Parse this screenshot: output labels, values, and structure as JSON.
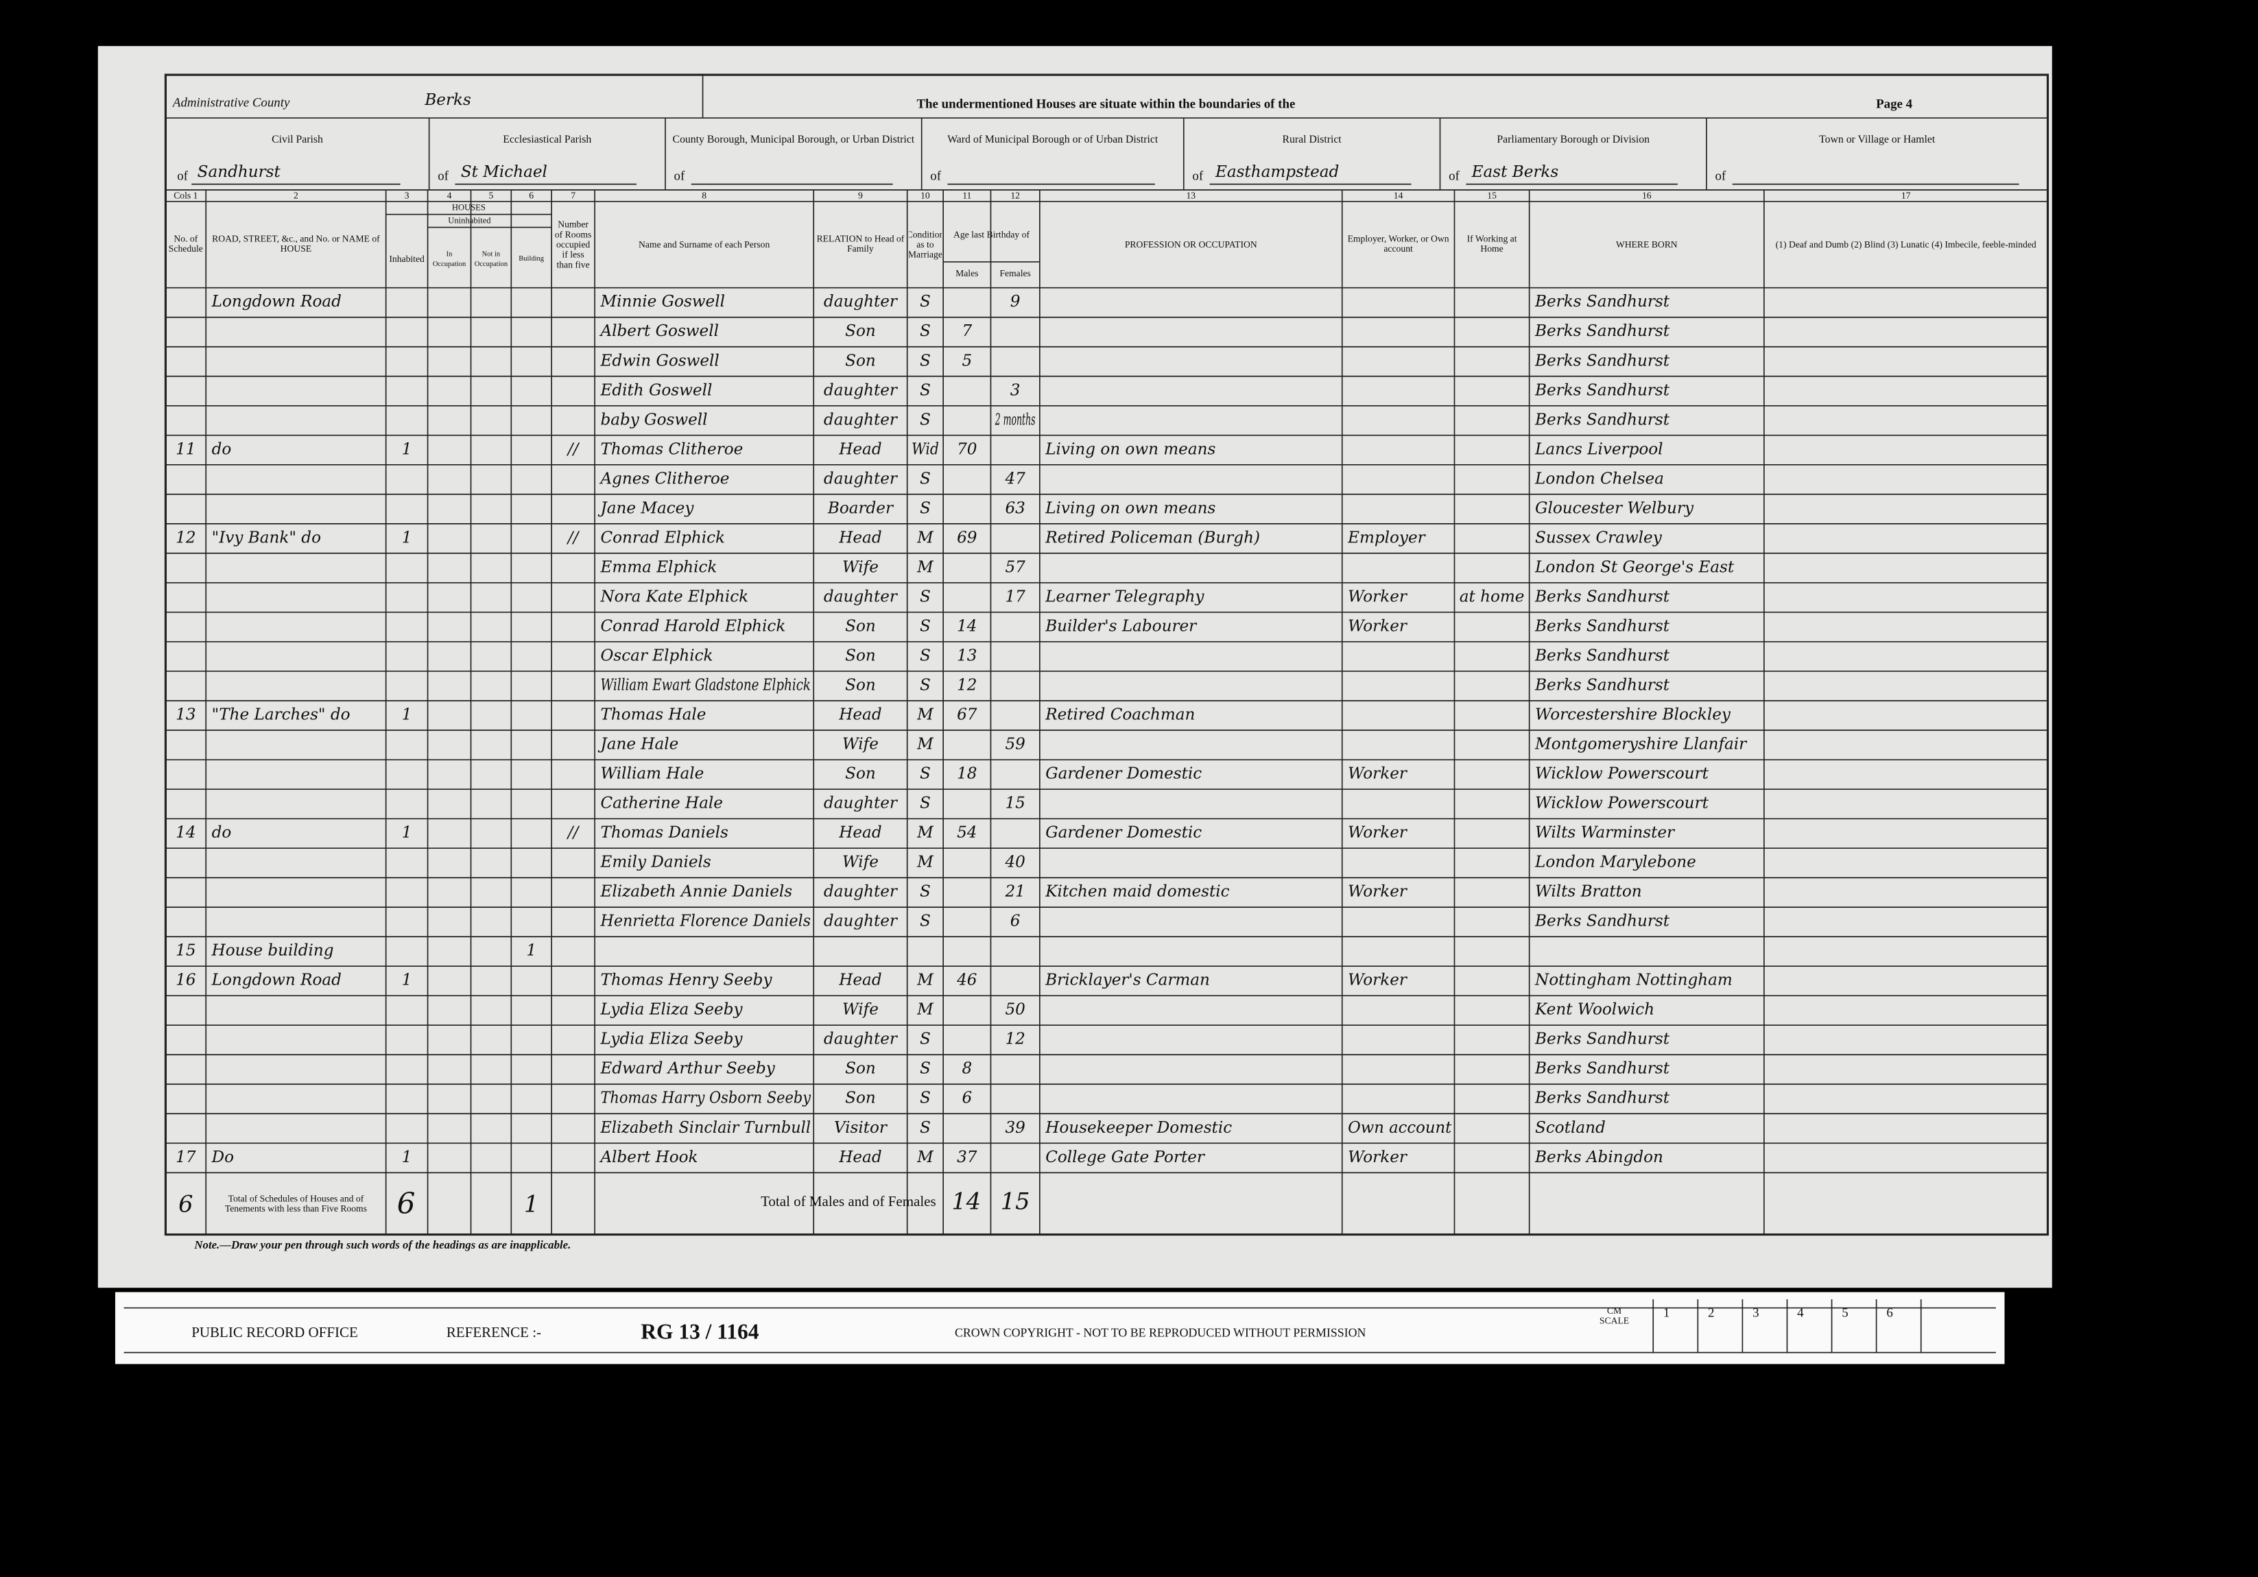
{
  "header": {
    "county_label": "Administrative County",
    "county": "Berks",
    "title": "The undermentioned Houses are situate within the boundaries of the",
    "page": "Page 4"
  },
  "districts": [
    {
      "label": "Civil Parish",
      "prefix": "of",
      "value": "Sandhurst"
    },
    {
      "label": "Ecclesiastical Parish",
      "prefix": "of",
      "value": "St Michael"
    },
    {
      "label": "County Borough, Municipal Borough, or Urban District",
      "prefix": "of"
    },
    {
      "label": "Ward of Municipal Borough or of Urban District",
      "prefix": "of"
    },
    {
      "label": "Rural District",
      "prefix": "of",
      "value": "Easthampstead"
    },
    {
      "label": "Parliamentary Borough or Division",
      "prefix": "of",
      "value": "East Berks"
    },
    {
      "label": "Town or Village or Hamlet",
      "prefix": "of"
    }
  ],
  "table": {
    "houses_group": "HOUSES",
    "uninhabited_group": "Uninhabited",
    "age_group": "Age last Birthday of",
    "columns": [
      {
        "number": "Cols 1",
        "heading": "No. of Schedule"
      },
      {
        "number": "2",
        "heading": "ROAD, STREET, &c., and No. or NAME of HOUSE"
      },
      {
        "number": "3",
        "heading": "Inhabited"
      },
      {
        "number": "4",
        "heading": "In Occupation"
      },
      {
        "number": "5",
        "heading": "Not in Occupation"
      },
      {
        "number": "6",
        "heading": "Building"
      },
      {
        "number": "7",
        "heading": "Number of Rooms occupied if less than five"
      },
      {
        "number": "8",
        "heading": "Name and Surname of each Person"
      },
      {
        "number": "9",
        "heading": "RELATION to Head of Family"
      },
      {
        "number": "10",
        "heading": "Condition as to Marriage"
      },
      {
        "number": "11",
        "heading": "Males"
      },
      {
        "number": "12",
        "heading": "Females"
      },
      {
        "number": "13",
        "heading": "PROFESSION OR OCCUPATION"
      },
      {
        "number": "14",
        "heading": "Employer, Worker, or Own account"
      },
      {
        "number": "15",
        "heading": "If Working at Home"
      },
      {
        "number": "16",
        "heading": "WHERE BORN"
      },
      {
        "number": "17",
        "heading": "(1) Deaf and Dumb (2) Blind (3) Lunatic (4) Imbecile, feeble-minded"
      }
    ],
    "rows": [
      {
        "road": "Longdown Road",
        "name": "Minnie Goswell",
        "relation": "daughter",
        "condition": "S",
        "females": "9",
        "born": "Berks Sandhurst"
      },
      {
        "name": "Albert Goswell",
        "relation": "Son",
        "condition": "S",
        "males": "7",
        "born": "Berks Sandhurst"
      },
      {
        "name": "Edwin Goswell",
        "relation": "Son",
        "condition": "S",
        "males": "5",
        "born": "Berks Sandhurst"
      },
      {
        "name": "Edith Goswell",
        "relation": "daughter",
        "condition": "S",
        "females": "3",
        "born": "Berks Sandhurst"
      },
      {
        "name": "baby Goswell",
        "relation": "daughter",
        "condition": "S",
        "females": "2 months",
        "born": "Berks Sandhurst"
      },
      {
        "schedule": "11",
        "road": "do",
        "inhabited": "1",
        "rooms": "//",
        "name": "Thomas Clitheroe",
        "relation": "Head",
        "condition": "Wid",
        "males": "70",
        "occupation": "Living on own means",
        "born": "Lancs Liverpool"
      },
      {
        "name": "Agnes Clitheroe",
        "relation": "daughter",
        "condition": "S",
        "females": "47",
        "born": "London Chelsea"
      },
      {
        "name": "Jane Macey",
        "relation": "Boarder",
        "condition": "S",
        "females": "63",
        "occupation": "Living on own means",
        "born": "Gloucester Welbury"
      },
      {
        "schedule": "12",
        "road": "\"Ivy Bank\" do",
        "inhabited": "1",
        "rooms": "//",
        "name": "Conrad Elphick",
        "relation": "Head",
        "condition": "M",
        "males": "69",
        "occupation": "Retired Policeman (Burgh)",
        "employment": "Employer",
        "born": "Sussex Crawley"
      },
      {
        "name": "Emma Elphick",
        "relation": "Wife",
        "condition": "M",
        "females": "57",
        "born": "London St George's East"
      },
      {
        "name": "Nora Kate Elphick",
        "relation": "daughter",
        "condition": "S",
        "females": "17",
        "occupation": "Learner Telegraphy",
        "employment": "Worker",
        "at_home": "at home",
        "born": "Berks Sandhurst"
      },
      {
        "name": "Conrad Harold Elphick",
        "relation": "Son",
        "condition": "S",
        "males": "14",
        "occupation": "Builder's Labourer",
        "employment": "Worker",
        "born": "Berks Sandhurst"
      },
      {
        "name": "Oscar Elphick",
        "relation": "Son",
        "condition": "S",
        "males": "13",
        "born": "Berks Sandhurst"
      },
      {
        "name": "William Ewart Gladstone Elphick",
        "relation": "Son",
        "condition": "S",
        "males": "12",
        "born": "Berks Sandhurst"
      },
      {
        "schedule": "13",
        "road": "\"The Larches\" do",
        "inhabited": "1",
        "name": "Thomas Hale",
        "relation": "Head",
        "condition": "M",
        "males": "67",
        "occupation": "Retired Coachman",
        "born": "Worcestershire Blockley"
      },
      {
        "name": "Jane Hale",
        "relation": "Wife",
        "condition": "M",
        "females": "59",
        "born": "Montgomeryshire Llanfair"
      },
      {
        "name": "William Hale",
        "relation": "Son",
        "condition": "S",
        "males": "18",
        "occupation": "Gardener Domestic",
        "employment": "Worker",
        "born": "Wicklow Powerscourt"
      },
      {
        "name": "Catherine Hale",
        "relation": "daughter",
        "condition": "S",
        "females": "15",
        "born": "Wicklow Powerscourt"
      },
      {
        "schedule": "14",
        "road": "do",
        "inhabited": "1",
        "rooms": "//",
        "name": "Thomas Daniels",
        "relation": "Head",
        "condition": "M",
        "males": "54",
        "occupation": "Gardener Domestic",
        "employment": "Worker",
        "born": "Wilts Warminster"
      },
      {
        "name": "Emily Daniels",
        "relation": "Wife",
        "condition": "M",
        "females": "40",
        "born": "London Marylebone"
      },
      {
        "name": "Elizabeth Annie Daniels",
        "relation": "daughter",
        "condition": "S",
        "females": "21",
        "occupation": "Kitchen maid domestic",
        "employment": "Worker",
        "born": "Wilts Bratton"
      },
      {
        "name": "Henrietta Florence Daniels",
        "relation": "daughter",
        "condition": "S",
        "females": "6",
        "born": "Berks Sandhurst"
      },
      {
        "schedule": "15",
        "road": "House building",
        "building": "1"
      },
      {
        "schedule": "16",
        "road": "Longdown Road",
        "inhabited": "1",
        "name": "Thomas Henry Seeby",
        "relation": "Head",
        "condition": "M",
        "males": "46",
        "occupation": "Bricklayer's Carman",
        "employment": "Worker",
        "born": "Nottingham Nottingham"
      },
      {
        "name": "Lydia Eliza Seeby",
        "relation": "Wife",
        "condition": "M",
        "females": "50",
        "born": "Kent Woolwich"
      },
      {
        "name": "Lydia Eliza Seeby",
        "relation": "daughter",
        "condition": "S",
        "females": "12",
        "born": "Berks Sandhurst"
      },
      {
        "name": "Edward Arthur Seeby",
        "relation": "Son",
        "condition": "S",
        "males": "8",
        "born": "Berks Sandhurst"
      },
      {
        "name": "Thomas Harry Osborn Seeby",
        "relation": "Son",
        "condition": "S",
        "males": "6",
        "born": "Berks Sandhurst"
      },
      {
        "name": "Elizabeth Sinclair Turnbull",
        "relation": "Visitor",
        "condition": "S",
        "females": "39",
        "occupation": "Housekeeper Domestic",
        "employment": "Own account",
        "born": "Scotland"
      },
      {
        "schedule": "17",
        "road": "Do",
        "inhabited": "1",
        "name": "Albert Hook",
        "relation": "Head",
        "condition": "M",
        "males": "37",
        "occupation": "College Gate Porter",
        "employment": "Worker",
        "born": "Berks Abingdon"
      }
    ],
    "totals": {
      "schedules": "6",
      "label": "Total of Schedules of Houses and of Tenements with less than Five Rooms",
      "inhabited": "6",
      "building": "1",
      "persons_label": "Total of Males and of Females",
      "males": "14",
      "females": "15"
    },
    "note": "Note.—Draw your pen through such words of the headings as are inapplicable."
  },
  "footer": {
    "office": "PUBLIC RECORD OFFICE",
    "reference_label": "REFERENCE :-",
    "reference": "RG 13 / 1164",
    "copyright": "CROWN COPYRIGHT  -  NOT TO BE REPRODUCED WITHOUT PERMISSION",
    "scale_label": "CM SCALE",
    "scale": [
      "1",
      "2",
      "3",
      "4",
      "5",
      "6"
    ]
  }
}
